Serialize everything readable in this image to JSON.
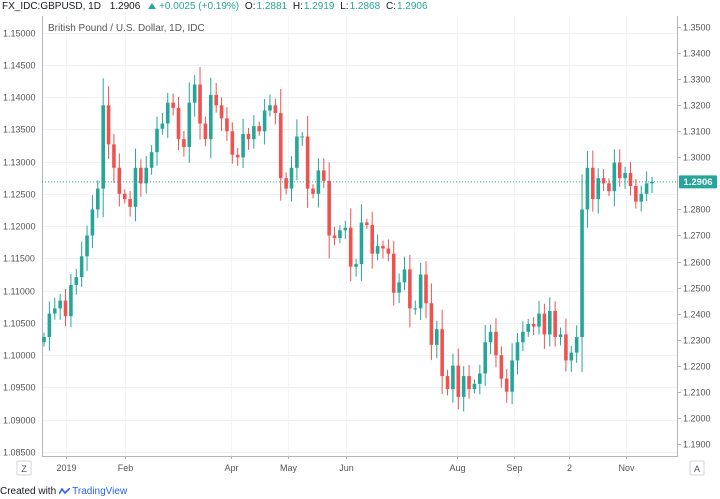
{
  "header": {
    "symbol": "FX_IDC:GBPUSD, 1D",
    "last": "1.2906",
    "change": "+0.0025 (+0.19%)",
    "open_label": "O:",
    "open": "1.2881",
    "high_label": "H:",
    "high": "1.2919",
    "low_label": "L:",
    "low": "1.2868",
    "close_label": "C:",
    "close": "1.2906"
  },
  "footer": {
    "created_with": "Created with",
    "brand": "TradingView"
  },
  "axis_buttons": {
    "left": "Z",
    "right": "A"
  },
  "colors": {
    "up": "#26a69a",
    "down": "#ef5350",
    "price_line": "#26a69a"
  },
  "chart_data": {
    "type": "candlestick",
    "title": "British Pound / U.S. Dollar, 1D, IDC",
    "left_axis": {
      "ticks": [
        "1.15000",
        "1.14500",
        "1.14000",
        "1.13500",
        "1.13000",
        "1.12500",
        "1.12000",
        "1.11500",
        "1.11000",
        "1.10500",
        "1.10000",
        "1.09500",
        "1.09000",
        "1.08500"
      ],
      "range": [
        1.08435,
        1.15258
      ]
    },
    "right_axis": {
      "ticks": [
        "1.3500",
        "1.3400",
        "1.3300",
        "1.3200",
        "1.3100",
        "1.3000",
        "1.2800",
        "1.2700",
        "1.2600",
        "1.2500",
        "1.2400",
        "1.2300",
        "1.2200",
        "1.2100",
        "1.2000",
        "1.1900"
      ],
      "range": [
        1.1853,
        1.3543
      ]
    },
    "x_labels": [
      "2019",
      "Feb",
      "Apr",
      "May",
      "Jun",
      "Aug",
      "Sep",
      "2",
      "Nov"
    ],
    "current_price": "1.2906",
    "closes": [
      1.231,
      1.24,
      1.242,
      1.245,
      1.239,
      1.251,
      1.254,
      1.262,
      1.27,
      1.28,
      1.288,
      1.32,
      1.305,
      1.296,
      1.286,
      1.284,
      1.281,
      1.296,
      1.29,
      1.296,
      1.302,
      1.311,
      1.313,
      1.321,
      1.319,
      1.307,
      1.304,
      1.321,
      1.328,
      1.313,
      1.307,
      1.324,
      1.32,
      1.315,
      1.31,
      1.301,
      1.3,
      1.309,
      1.307,
      1.312,
      1.31,
      1.318,
      1.32,
      1.317,
      1.292,
      1.288,
      1.296,
      1.308,
      1.308,
      1.288,
      1.286,
      1.295,
      1.291,
      1.27,
      1.269,
      1.272,
      1.273,
      1.258,
      1.259,
      1.275,
      1.274,
      1.263,
      1.266,
      1.265,
      1.263,
      1.248,
      1.252,
      1.257,
      1.242,
      1.242,
      1.255,
      1.244,
      1.228,
      1.234,
      1.216,
      1.211,
      1.22,
      1.208,
      1.216,
      1.211,
      1.213,
      1.217,
      1.229,
      1.233,
      1.224,
      1.215,
      1.21,
      1.222,
      1.229,
      1.233,
      1.236,
      1.235,
      1.24,
      1.232,
      1.241,
      1.231,
      1.232,
      1.222,
      1.225,
      1.231,
      1.28,
      1.296,
      1.284,
      1.292,
      1.29,
      1.287,
      1.298,
      1.292,
      1.294,
      1.289,
      1.283,
      1.286,
      1.29,
      1.2906
    ]
  }
}
